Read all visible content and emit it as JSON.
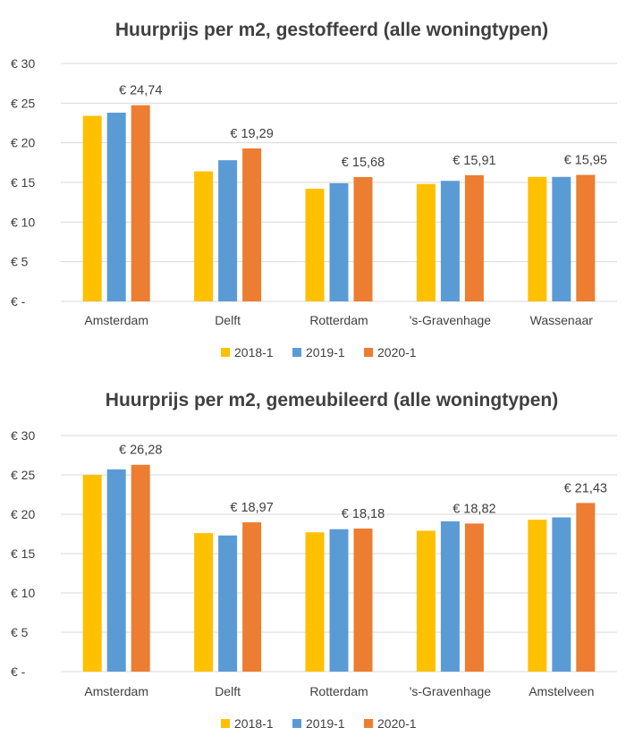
{
  "chart_data": [
    {
      "type": "bar",
      "title": "Huurprijs per m2, gestoffeerd (alle woningtypen)",
      "categories": [
        "Amsterdam",
        "Delft",
        "Rotterdam",
        "'s-Gravenhage",
        "Wassenaar"
      ],
      "series": [
        {
          "name": "2018-1",
          "color": "#ffc000",
          "values": [
            23.4,
            16.4,
            14.2,
            14.8,
            15.7
          ]
        },
        {
          "name": "2019-1",
          "color": "#5b9bd5",
          "values": [
            23.8,
            17.8,
            14.9,
            15.2,
            15.7
          ]
        },
        {
          "name": "2020-1",
          "color": "#ed7d31",
          "values": [
            24.74,
            19.29,
            15.68,
            15.91,
            15.95
          ]
        }
      ],
      "data_labels": [
        "€ 24,74",
        "€ 19,29",
        "€ 15,68",
        "€ 15,91",
        "€ 15,95"
      ],
      "y_ticks": [
        "€ -",
        "€ 5",
        "€ 10",
        "€ 15",
        "€ 20",
        "€ 25",
        "€ 30"
      ],
      "ylim": [
        0,
        30
      ],
      "grid": true,
      "legend": "bottom"
    },
    {
      "type": "bar",
      "title": "Huurprijs per m2, gemeubileerd (alle woningtypen)",
      "categories": [
        "Amsterdam",
        "Delft",
        "Rotterdam",
        "'s-Gravenhage",
        "Amstelveen"
      ],
      "series": [
        {
          "name": "2018-1",
          "color": "#ffc000",
          "values": [
            25.0,
            17.6,
            17.7,
            17.9,
            19.3
          ]
        },
        {
          "name": "2019-1",
          "color": "#5b9bd5",
          "values": [
            25.7,
            17.3,
            18.1,
            19.1,
            19.6
          ]
        },
        {
          "name": "2020-1",
          "color": "#ed7d31",
          "values": [
            26.28,
            18.97,
            18.18,
            18.82,
            21.43
          ]
        }
      ],
      "data_labels": [
        "€ 26,28",
        "€ 18,97",
        "€ 18,18",
        "€ 18,82",
        "€ 21,43"
      ],
      "y_ticks": [
        "€ -",
        "€ 5",
        "€ 10",
        "€ 15",
        "€ 20",
        "€ 25",
        "€ 30"
      ],
      "ylim": [
        0,
        30
      ],
      "grid": true,
      "legend": "bottom"
    }
  ]
}
